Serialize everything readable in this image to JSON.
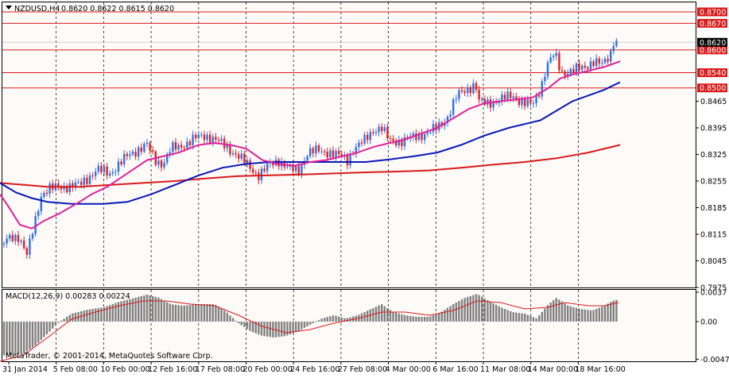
{
  "header": {
    "symbol": "NZDUSD,H4",
    "ohlc": "0.8620 0.8622 0.8615 0.8620"
  },
  "indicator": {
    "label": "MACD(12,26,9) 0.00283 0.00224"
  },
  "copyright": "MetaTrader, © 2001-2014, MetaQuotes Software Corp.",
  "colors": {
    "bull": "#2e6fe8",
    "bear": "#e02020",
    "ma_fast": "#e0219a",
    "ma_mid": "#0a18b8",
    "ma_slow": "#d81a1a",
    "level": "#d81a1a",
    "macd_hist": "#808080",
    "macd_signal": "#d81a1a"
  },
  "chart_data": [
    {
      "type": "candlestick",
      "price_axis": {
        "range": [
          0.7975,
          0.8725
        ],
        "ticks": [
          "0.8465",
          "0.8395",
          "0.8325",
          "0.8255",
          "0.8185",
          "0.8115",
          "0.8045",
          "0.7975"
        ]
      },
      "level_lines": [
        {
          "value": 0.87,
          "label": "0.8700"
        },
        {
          "value": 0.867,
          "label": "0.8670"
        },
        {
          "value": 0.86,
          "label": "0.8600"
        },
        {
          "value": 0.854,
          "label": "0.8540"
        },
        {
          "value": 0.85,
          "label": "0.8500"
        }
      ],
      "current_price": {
        "value": 0.862,
        "label": "0.8620"
      },
      "time_labels": [
        "31 Jan 2014",
        "5 Feb 08:00",
        "10 Feb 00:00",
        "12 Feb 16:00",
        "17 Feb 08:00",
        "20 Feb 00:00",
        "24 Feb 16:00",
        "27 Feb 08:00",
        "4 Mar 00:00",
        "6 Mar 16:00",
        "11 Mar 08:00",
        "14 Mar 00:00",
        "18 Mar 16:00"
      ],
      "price_anchors": [
        [
          0,
          0.808
        ],
        [
          12,
          0.8105
        ],
        [
          24,
          0.811
        ],
        [
          34,
          0.806
        ],
        [
          42,
          0.813
        ],
        [
          52,
          0.822
        ],
        [
          62,
          0.8235
        ],
        [
          80,
          0.824
        ],
        [
          100,
          0.8245
        ],
        [
          114,
          0.827
        ],
        [
          122,
          0.8285
        ],
        [
          138,
          0.8275
        ],
        [
          150,
          0.83
        ],
        [
          160,
          0.832
        ],
        [
          175,
          0.834
        ],
        [
          185,
          0.835
        ],
        [
          195,
          0.831
        ],
        [
          205,
          0.83
        ],
        [
          215,
          0.834
        ],
        [
          225,
          0.8345
        ],
        [
          235,
          0.8355
        ],
        [
          248,
          0.837
        ],
        [
          258,
          0.8375
        ],
        [
          270,
          0.8365
        ],
        [
          285,
          0.8345
        ],
        [
          300,
          0.832
        ],
        [
          315,
          0.829
        ],
        [
          325,
          0.827
        ],
        [
          338,
          0.8295
        ],
        [
          350,
          0.831
        ],
        [
          362,
          0.829
        ],
        [
          375,
          0.828
        ],
        [
          387,
          0.833
        ],
        [
          400,
          0.8335
        ],
        [
          415,
          0.833
        ],
        [
          428,
          0.832
        ],
        [
          437,
          0.831
        ],
        [
          445,
          0.834
        ],
        [
          458,
          0.836
        ],
        [
          470,
          0.839
        ],
        [
          480,
          0.8395
        ],
        [
          490,
          0.836
        ],
        [
          505,
          0.836
        ],
        [
          520,
          0.837
        ],
        [
          535,
          0.838
        ],
        [
          550,
          0.8395
        ],
        [
          562,
          0.842
        ],
        [
          575,
          0.848
        ],
        [
          590,
          0.85
        ],
        [
          598,
          0.851
        ],
        [
          603,
          0.846
        ],
        [
          615,
          0.846
        ],
        [
          630,
          0.847
        ],
        [
          645,
          0.848
        ],
        [
          658,
          0.846
        ],
        [
          670,
          0.8455
        ],
        [
          680,
          0.85
        ],
        [
          688,
          0.856
        ],
        [
          698,
          0.859
        ],
        [
          706,
          0.854
        ],
        [
          720,
          0.8545
        ],
        [
          735,
          0.8555
        ],
        [
          746,
          0.857
        ],
        [
          758,
          0.856
        ],
        [
          768,
          0.859
        ],
        [
          771,
          0.8625
        ],
        [
          778,
          0.862
        ]
      ],
      "ma_fast": [
        [
          0,
          0.822
        ],
        [
          10,
          0.819
        ],
        [
          25,
          0.814
        ],
        [
          40,
          0.813
        ],
        [
          55,
          0.815
        ],
        [
          75,
          0.817
        ],
        [
          100,
          0.82
        ],
        [
          115,
          0.822
        ],
        [
          135,
          0.824
        ],
        [
          160,
          0.8275
        ],
        [
          185,
          0.831
        ],
        [
          205,
          0.832
        ],
        [
          225,
          0.833
        ],
        [
          250,
          0.835
        ],
        [
          270,
          0.8355
        ],
        [
          290,
          0.835
        ],
        [
          310,
          0.834
        ],
        [
          330,
          0.831
        ],
        [
          350,
          0.83
        ],
        [
          370,
          0.8295
        ],
        [
          390,
          0.8305
        ],
        [
          410,
          0.831
        ],
        [
          430,
          0.832
        ],
        [
          450,
          0.833
        ],
        [
          470,
          0.8345
        ],
        [
          490,
          0.8355
        ],
        [
          510,
          0.8365
        ],
        [
          530,
          0.838
        ],
        [
          550,
          0.8395
        ],
        [
          570,
          0.842
        ],
        [
          590,
          0.8445
        ],
        [
          610,
          0.846
        ],
        [
          630,
          0.8465
        ],
        [
          650,
          0.847
        ],
        [
          670,
          0.8475
        ],
        [
          690,
          0.85
        ],
        [
          705,
          0.8525
        ],
        [
          720,
          0.8535
        ],
        [
          740,
          0.8545
        ],
        [
          760,
          0.8555
        ],
        [
          780,
          0.857
        ]
      ],
      "ma_mid": [
        [
          0,
          0.825
        ],
        [
          20,
          0.8225
        ],
        [
          40,
          0.821
        ],
        [
          60,
          0.82
        ],
        [
          90,
          0.8195
        ],
        [
          130,
          0.8195
        ],
        [
          160,
          0.82
        ],
        [
          190,
          0.822
        ],
        [
          220,
          0.8245
        ],
        [
          250,
          0.827
        ],
        [
          280,
          0.829
        ],
        [
          310,
          0.83
        ],
        [
          340,
          0.8305
        ],
        [
          370,
          0.8305
        ],
        [
          400,
          0.8305
        ],
        [
          430,
          0.8305
        ],
        [
          460,
          0.8305
        ],
        [
          490,
          0.8312
        ],
        [
          520,
          0.832
        ],
        [
          550,
          0.833
        ],
        [
          580,
          0.835
        ],
        [
          610,
          0.8375
        ],
        [
          640,
          0.8395
        ],
        [
          670,
          0.841
        ],
        [
          680,
          0.8415
        ],
        [
          700,
          0.844
        ],
        [
          720,
          0.8465
        ],
        [
          740,
          0.848
        ],
        [
          760,
          0.8495
        ],
        [
          780,
          0.8515
        ]
      ],
      "ma_slow": [
        [
          0,
          0.825
        ],
        [
          30,
          0.8245
        ],
        [
          60,
          0.824
        ],
        [
          100,
          0.824
        ],
        [
          140,
          0.8245
        ],
        [
          180,
          0.825
        ],
        [
          220,
          0.8255
        ],
        [
          260,
          0.8262
        ],
        [
          300,
          0.8268
        ],
        [
          340,
          0.827
        ],
        [
          380,
          0.8272
        ],
        [
          420,
          0.8275
        ],
        [
          460,
          0.8278
        ],
        [
          500,
          0.828
        ],
        [
          540,
          0.8283
        ],
        [
          580,
          0.829
        ],
        [
          620,
          0.8298
        ],
        [
          660,
          0.8305
        ],
        [
          700,
          0.8315
        ],
        [
          740,
          0.833
        ],
        [
          780,
          0.835
        ]
      ]
    },
    {
      "type": "bar",
      "name": "MACD(12,26,9)",
      "value_axis": {
        "range": [
          -0.005,
          0.004
        ],
        "ticks": [
          "0.0037",
          "0.00",
          "-0.00473"
        ]
      },
      "hist_anchors": [
        [
          0,
          -0.0043
        ],
        [
          30,
          -0.004
        ],
        [
          45,
          -0.003
        ],
        [
          60,
          -0.0015
        ],
        [
          75,
          0.0
        ],
        [
          90,
          0.001
        ],
        [
          110,
          0.0015
        ],
        [
          130,
          0.0018
        ],
        [
          150,
          0.0025
        ],
        [
          170,
          0.003
        ],
        [
          185,
          0.0034
        ],
        [
          200,
          0.003
        ],
        [
          215,
          0.0022
        ],
        [
          230,
          0.002
        ],
        [
          250,
          0.0022
        ],
        [
          270,
          0.0022
        ],
        [
          285,
          0.0012
        ],
        [
          300,
          -0.0002
        ],
        [
          315,
          -0.0012
        ],
        [
          330,
          -0.0018
        ],
        [
          345,
          -0.002
        ],
        [
          360,
          -0.0018
        ],
        [
          375,
          -0.0012
        ],
        [
          390,
          -0.0004
        ],
        [
          405,
          0.0004
        ],
        [
          420,
          0.0008
        ],
        [
          435,
          0.0004
        ],
        [
          450,
          0.0008
        ],
        [
          465,
          0.0015
        ],
        [
          480,
          0.0022
        ],
        [
          495,
          0.0012
        ],
        [
          510,
          0.0008
        ],
        [
          525,
          0.0006
        ],
        [
          540,
          0.0006
        ],
        [
          555,
          0.0012
        ],
        [
          570,
          0.0022
        ],
        [
          585,
          0.003
        ],
        [
          600,
          0.0035
        ],
        [
          615,
          0.0026
        ],
        [
          630,
          0.0018
        ],
        [
          645,
          0.0012
        ],
        [
          660,
          0.001
        ],
        [
          675,
          0.0004
        ],
        [
          690,
          0.0022
        ],
        [
          700,
          0.003
        ],
        [
          715,
          0.002
        ],
        [
          730,
          0.0016
        ],
        [
          745,
          0.0014
        ],
        [
          760,
          0.002
        ],
        [
          770,
          0.0026
        ],
        [
          778,
          0.0028
        ]
      ],
      "signal": [
        [
          0,
          -0.005
        ],
        [
          30,
          -0.0042
        ],
        [
          60,
          -0.002
        ],
        [
          90,
          0.0003
        ],
        [
          120,
          0.0012
        ],
        [
          150,
          0.002
        ],
        [
          180,
          0.0026
        ],
        [
          210,
          0.0026
        ],
        [
          240,
          0.0022
        ],
        [
          270,
          0.002
        ],
        [
          300,
          0.0008
        ],
        [
          330,
          -0.0006
        ],
        [
          360,
          -0.0014
        ],
        [
          390,
          -0.001
        ],
        [
          420,
          -0.0002
        ],
        [
          450,
          0.0004
        ],
        [
          480,
          0.0012
        ],
        [
          510,
          0.0012
        ],
        [
          540,
          0.0008
        ],
        [
          570,
          0.0014
        ],
        [
          600,
          0.0026
        ],
        [
          630,
          0.0024
        ],
        [
          660,
          0.0016
        ],
        [
          690,
          0.0018
        ],
        [
          710,
          0.0024
        ],
        [
          740,
          0.002
        ],
        [
          760,
          0.002
        ],
        [
          778,
          0.0024
        ]
      ]
    }
  ]
}
